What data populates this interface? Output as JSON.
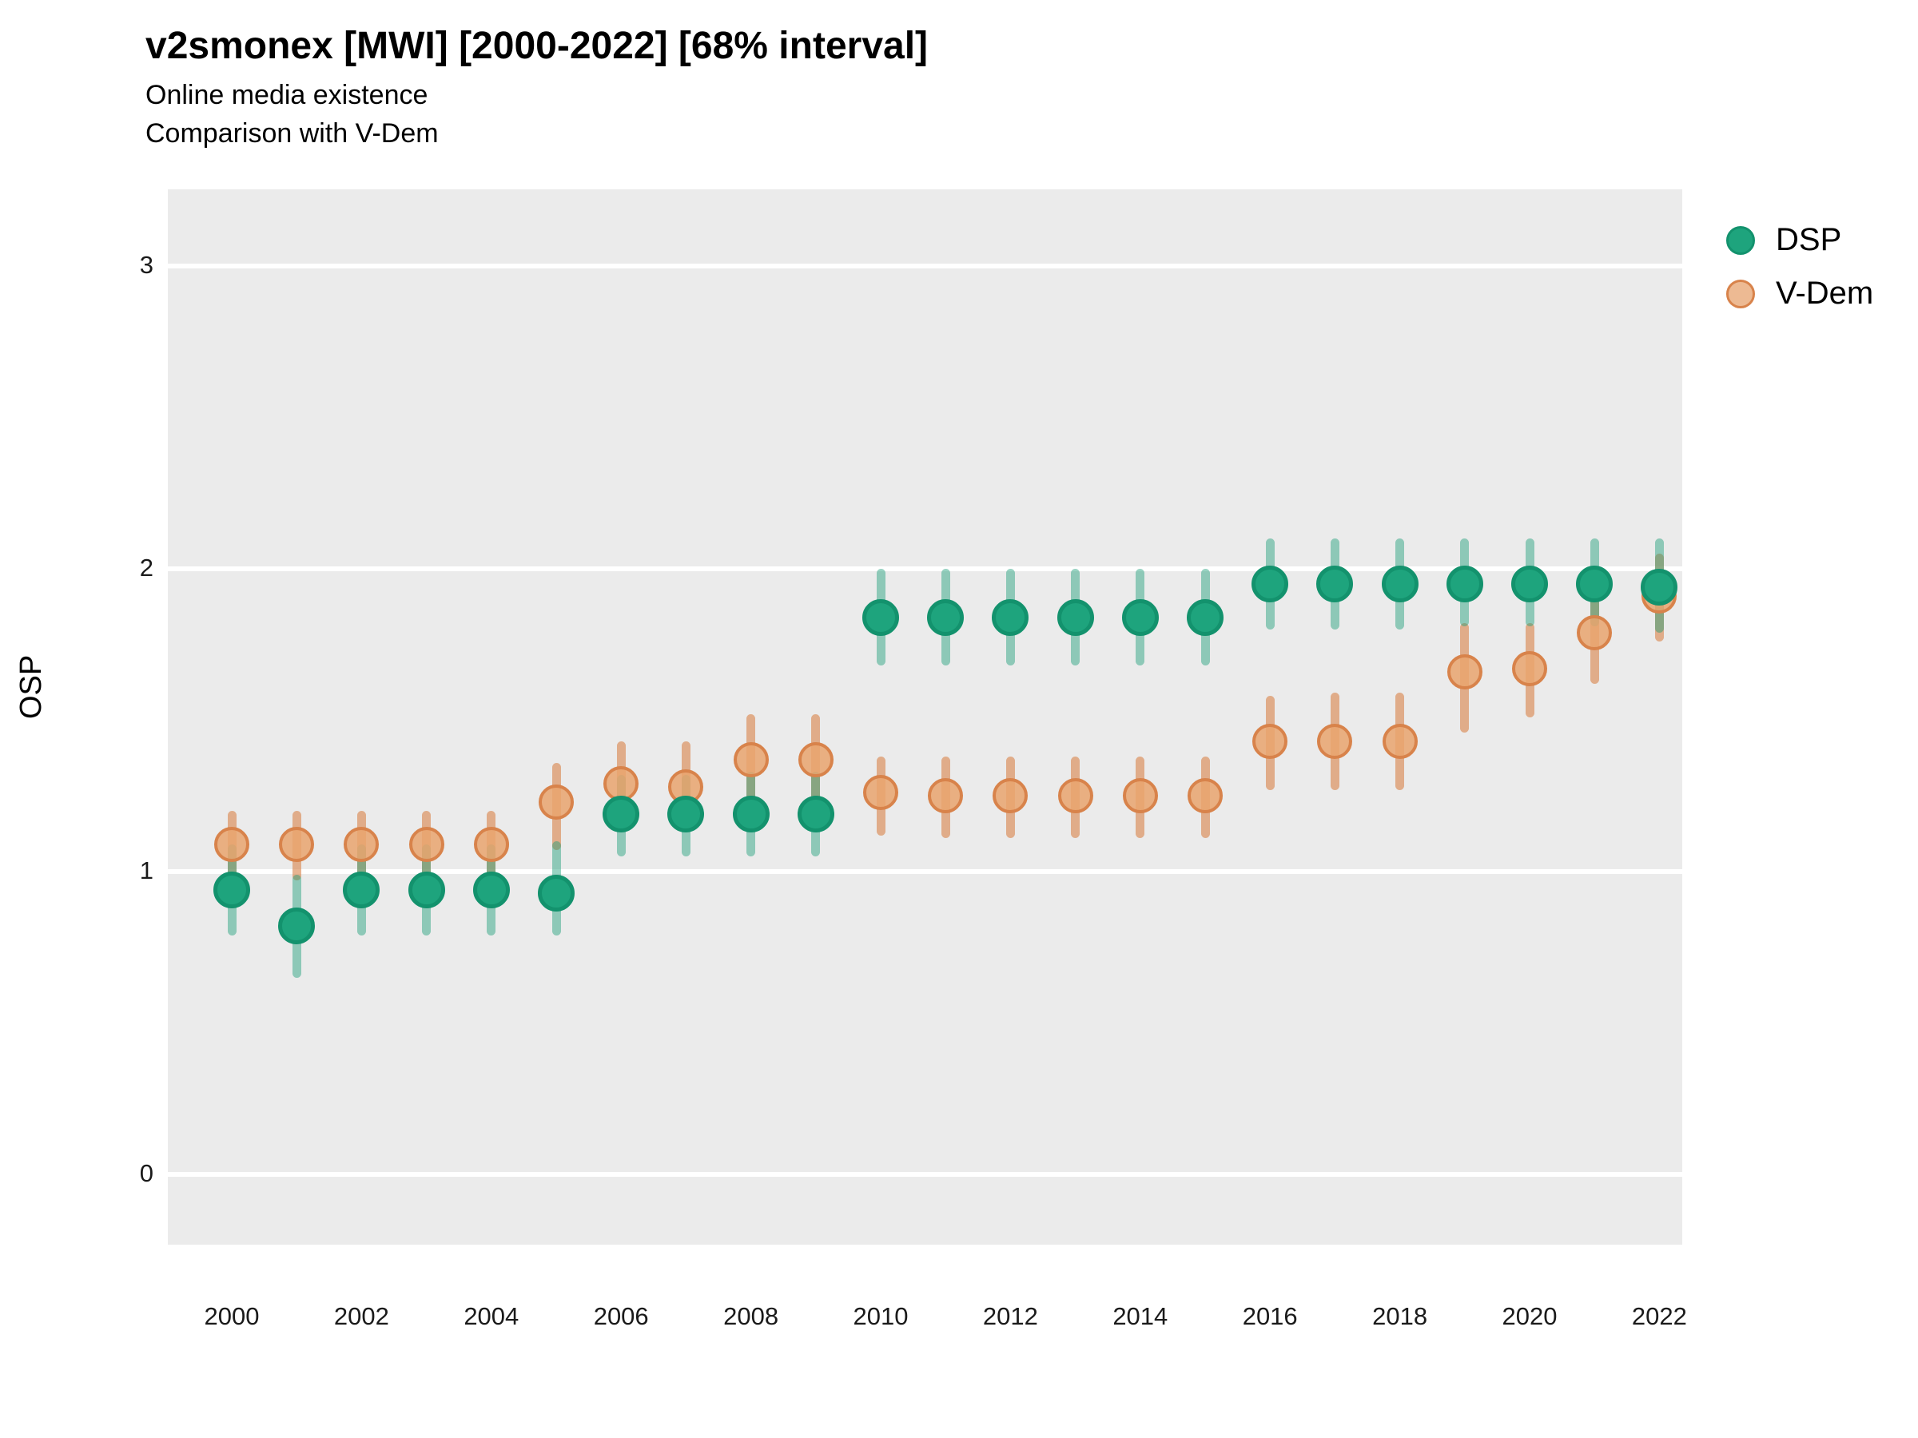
{
  "header": {
    "title": "v2smonex [MWI] [2000-2022] [68% interval]",
    "subtitle1": "Online media existence",
    "subtitle2": "Comparison with V-Dem"
  },
  "axes": {
    "y_label": "OSP",
    "y_ticks": [
      0,
      1,
      2,
      3
    ],
    "x_ticks": [
      2000,
      2002,
      2004,
      2006,
      2008,
      2010,
      2012,
      2014,
      2016,
      2018,
      2020,
      2022
    ]
  },
  "legend": {
    "items": [
      {
        "label": "DSP",
        "fill": "#1EA47D",
        "stroke": "#13926D"
      },
      {
        "label": "V-Dem",
        "fill": "#EDBA93",
        "stroke": "#D8834B"
      }
    ]
  },
  "colors": {
    "panel_background": "#EBEBEB",
    "gridline": "#FFFFFF",
    "dsp_point_fill": "#1EA47D",
    "dsp_point_stroke": "#13926D",
    "dsp_bar": "rgba(27,158,119,0.45)",
    "vdem_point_fill": "rgba(233,164,110,0.85)",
    "vdem_point_stroke": "#D8834B",
    "vdem_bar": "rgba(217,130,72,0.60)"
  },
  "chart_data": {
    "type": "scatter",
    "title": "v2smonex [MWI] [2000-2022] [68% interval]",
    "subtitle": [
      "Online media existence",
      "Comparison with V-Dem"
    ],
    "xlabel": "",
    "ylabel": "OSP",
    "interval_note": "68% interval",
    "ylim": [
      -0.25,
      3.25
    ],
    "yticks": [
      0,
      1,
      2,
      3
    ],
    "xticks": [
      2000,
      2002,
      2004,
      2006,
      2008,
      2010,
      2012,
      2014,
      2016,
      2018,
      2020,
      2022
    ],
    "grid": "white horizontal major gridlines on grey panel",
    "legend_position": "right",
    "x": [
      2000,
      2001,
      2002,
      2003,
      2004,
      2005,
      2006,
      2007,
      2008,
      2009,
      2010,
      2011,
      2012,
      2013,
      2014,
      2015,
      2016,
      2017,
      2018,
      2019,
      2020,
      2021,
      2022
    ],
    "series": [
      {
        "name": "DSP",
        "point_fill": "#1EA47D",
        "point_stroke": "#13926D",
        "bar_color": "rgba(27,158,119,0.45)",
        "values": [
          0.94,
          0.82,
          0.94,
          0.94,
          0.94,
          0.93,
          1.19,
          1.19,
          1.19,
          1.19,
          1.84,
          1.84,
          1.84,
          1.84,
          1.84,
          1.84,
          1.95,
          1.95,
          1.95,
          1.95,
          1.95,
          1.95,
          1.94
        ],
        "lo": [
          0.79,
          0.65,
          0.79,
          0.79,
          0.79,
          0.79,
          1.05,
          1.05,
          1.05,
          1.05,
          1.68,
          1.68,
          1.68,
          1.68,
          1.68,
          1.68,
          1.8,
          1.8,
          1.8,
          1.81,
          1.81,
          1.81,
          1.79
        ],
        "hi": [
          1.09,
          0.99,
          1.09,
          1.09,
          1.09,
          1.1,
          1.32,
          1.32,
          1.33,
          1.33,
          2.0,
          2.0,
          2.0,
          2.0,
          2.0,
          2.0,
          2.1,
          2.1,
          2.1,
          2.1,
          2.1,
          2.1,
          2.1
        ]
      },
      {
        "name": "V-Dem",
        "point_fill": "rgba(233,164,110,0.85)",
        "point_stroke": "#D8834B",
        "bar_color": "rgba(217,130,72,0.60)",
        "values": [
          1.09,
          1.09,
          1.09,
          1.09,
          1.09,
          1.23,
          1.29,
          1.28,
          1.37,
          1.37,
          1.26,
          1.25,
          1.25,
          1.25,
          1.25,
          1.25,
          1.43,
          1.43,
          1.43,
          1.66,
          1.67,
          1.79,
          1.91
        ],
        "lo": [
          0.97,
          0.97,
          0.97,
          0.97,
          0.97,
          1.07,
          1.14,
          1.14,
          1.23,
          1.23,
          1.12,
          1.11,
          1.11,
          1.11,
          1.11,
          1.11,
          1.27,
          1.27,
          1.27,
          1.46,
          1.51,
          1.62,
          1.76
        ],
        "hi": [
          1.2,
          1.2,
          1.2,
          1.2,
          1.2,
          1.36,
          1.43,
          1.43,
          1.52,
          1.52,
          1.38,
          1.38,
          1.38,
          1.38,
          1.38,
          1.38,
          1.58,
          1.59,
          1.59,
          1.82,
          1.82,
          1.95,
          2.05
        ]
      }
    ]
  }
}
